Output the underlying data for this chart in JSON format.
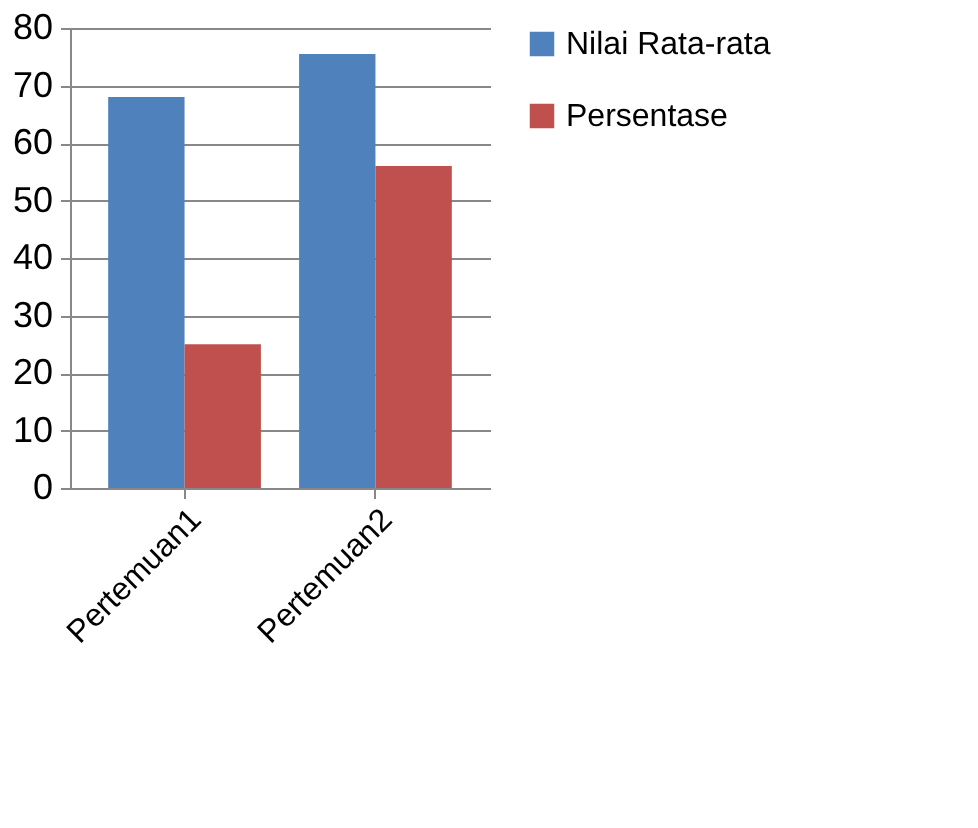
{
  "chart_data": {
    "type": "bar",
    "categories": [
      "Pertemuan1",
      "Pertemuan2"
    ],
    "series": [
      {
        "name": "Nilai Rata-rata",
        "color": "#4f81bd",
        "values": [
          68,
          75.5
        ]
      },
      {
        "name": "Persentase",
        "color": "#c0504d",
        "values": [
          25,
          56
        ]
      }
    ],
    "ylim": [
      0,
      80
    ],
    "yticks": [
      0,
      10,
      20,
      30,
      40,
      50,
      60,
      70,
      80
    ],
    "grid": "y",
    "legend": "right"
  }
}
